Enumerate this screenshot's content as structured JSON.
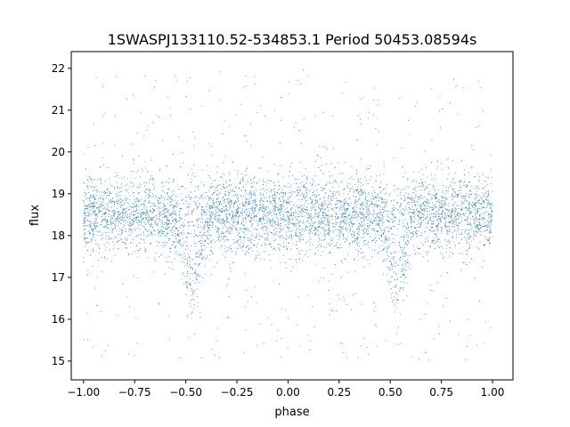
{
  "chart_data": {
    "type": "scatter",
    "title": "1SWASPJ133110.52-534853.1 Period 50453.08594s",
    "xlabel": "phase",
    "ylabel": "flux",
    "xlim": [
      -1.06,
      1.1
    ],
    "ylim": [
      14.55,
      22.4
    ],
    "xticks": [
      -1.0,
      -0.75,
      -0.5,
      -0.25,
      0.0,
      0.25,
      0.5,
      0.75,
      1.0
    ],
    "xtick_labels": [
      "−1.00",
      "−0.75",
      "−0.50",
      "−0.25",
      "0.00",
      "0.25",
      "0.50",
      "0.75",
      "1.00"
    ],
    "yticks": [
      15,
      16,
      17,
      18,
      19,
      20,
      21,
      22
    ],
    "ytick_labels": [
      "15",
      "16",
      "17",
      "18",
      "19",
      "20",
      "21",
      "22"
    ],
    "grid": false,
    "marker_color": "#1f77b4",
    "phase_range": [
      -1.0,
      1.0
    ],
    "baseline_flux": 18.5,
    "baseline_scatter": 0.45,
    "eclipses": [
      {
        "phase_center": -0.47,
        "min_flux": 16.3,
        "half_width": 0.09
      },
      {
        "phase_center": 0.53,
        "min_flux": 16.3,
        "half_width": 0.09
      }
    ],
    "outlier_range": [
      15.0,
      22.0
    ]
  }
}
